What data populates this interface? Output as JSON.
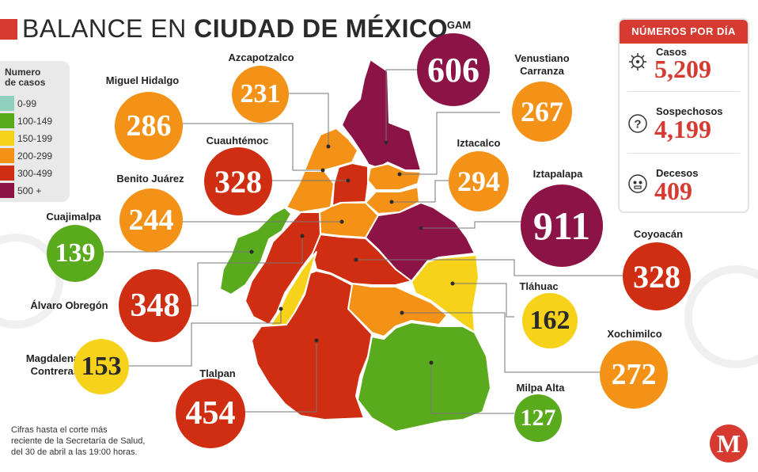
{
  "title": {
    "prefix": "BALANCE EN",
    "bold": "CIUDAD DE MÉXICO"
  },
  "legend": {
    "title_line1": "Numero",
    "title_line2": "de casos",
    "items": [
      {
        "label": "0-99",
        "color": "#8fd1bd"
      },
      {
        "label": "100-149",
        "color": "#5aaa1e"
      },
      {
        "label": "150-199",
        "color": "#f6d31a"
      },
      {
        "label": "200-299",
        "color": "#f39216"
      },
      {
        "label": "300-499",
        "color": "#cf2e12"
      },
      {
        "label": "500 +",
        "color": "#8c1346"
      }
    ]
  },
  "boroughs": [
    {
      "id": "gam",
      "name": "GAM",
      "value": "606",
      "color": "#8c1346"
    },
    {
      "id": "azcapotzalco",
      "name": "Azcapotzalco",
      "value": "231",
      "color": "#f39216"
    },
    {
      "id": "venustiano",
      "name": "Venustiano Carranza",
      "name_line1": "Venustiano",
      "name_line2": "Carranza",
      "value": "267",
      "color": "#f39216"
    },
    {
      "id": "miguel-hidalgo",
      "name": "Miguel Hidalgo",
      "value": "286",
      "color": "#f39216"
    },
    {
      "id": "cuauhtemoc",
      "name": "Cuauhtémoc",
      "value": "328",
      "color": "#cf2e12"
    },
    {
      "id": "iztacalco",
      "name": "Iztacalco",
      "value": "294",
      "color": "#f39216"
    },
    {
      "id": "benito-juarez",
      "name": "Benito Juárez",
      "value": "244",
      "color": "#f39216"
    },
    {
      "id": "iztapalapa",
      "name": "Iztapalapa",
      "value": "911",
      "color": "#8c1346"
    },
    {
      "id": "cuajimalpa",
      "name": "Cuajimalpa",
      "value": "139",
      "color": "#5aaa1e"
    },
    {
      "id": "coyoacan",
      "name": "Coyoacán",
      "value": "328",
      "color": "#cf2e12"
    },
    {
      "id": "alvaro-obregon",
      "name": "Álvaro Obregón",
      "value": "348",
      "color": "#cf2e12"
    },
    {
      "id": "tlahuac",
      "name": "Tláhuac",
      "value": "162",
      "color": "#f6d31a"
    },
    {
      "id": "magdalena",
      "name": "Magdalena Contreras",
      "name_line1": "Magdalena",
      "name_line2": "Contreras",
      "value": "153",
      "color": "#f6d31a"
    },
    {
      "id": "xochimilco",
      "name": "Xochimilco",
      "value": "272",
      "color": "#f39216"
    },
    {
      "id": "tlalpan",
      "name": "Tlalpan",
      "value": "454",
      "color": "#cf2e12"
    },
    {
      "id": "milpa-alta",
      "name": "Milpa Alta",
      "value": "127",
      "color": "#5aaa1e"
    }
  ],
  "panel": {
    "header": "NÚMEROS POR DÍA",
    "stats": [
      {
        "label": "Casos",
        "value": "5,209",
        "icon": "virus-icon"
      },
      {
        "label": "Sospechosos",
        "value": "4,199",
        "icon": "question-icon"
      },
      {
        "label": "Decesos",
        "value": "409",
        "icon": "skull-icon"
      }
    ]
  },
  "footnote": {
    "line1": "Cifras hasta el corte más",
    "line2": "reciente de la Secretaría de Salud,",
    "line3": "del 30 de abril a las 19:00 horas."
  },
  "logo": {
    "letter": "M",
    "color": "#d63a31"
  },
  "colors": {
    "accent": "#d63a31"
  }
}
